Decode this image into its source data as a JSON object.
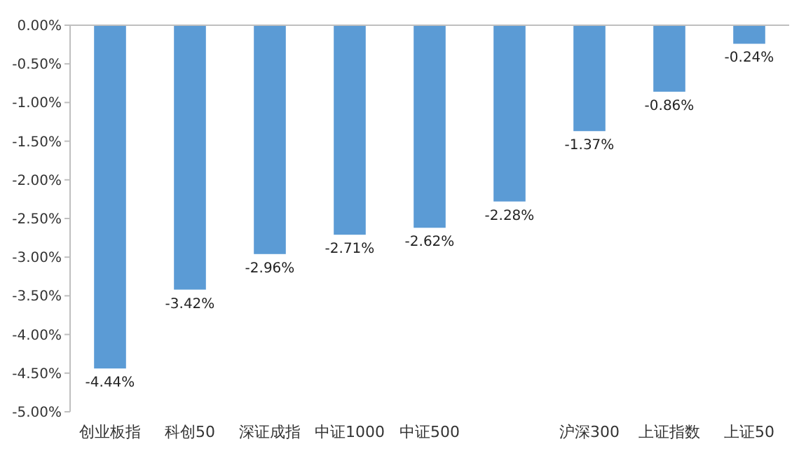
{
  "chart_data": {
    "type": "bar",
    "categories": [
      "创业板指",
      "科创50",
      "深证成指",
      "中证1000",
      "中证500",
      null,
      "沪深300",
      "上证指数",
      "上证50"
    ],
    "values": [
      -4.44,
      -3.42,
      -2.96,
      -2.71,
      -2.62,
      -2.28,
      -1.37,
      -0.86,
      -0.24
    ],
    "value_labels": [
      "-4.44%",
      "-3.42%",
      "-2.96%",
      "-2.71%",
      "-2.62%",
      "-2.28%",
      "-1.37%",
      "-0.86%",
      "-0.24%"
    ],
    "color": "#5b9bd5",
    "ylim": [
      -5,
      0
    ],
    "yticks": [
      {
        "value": 0,
        "label": "0.00%"
      },
      {
        "value": -0.5,
        "label": "-0.50%"
      },
      {
        "value": -1,
        "label": "-1.00%"
      },
      {
        "value": -1.5,
        "label": "-1.50%"
      },
      {
        "value": -2,
        "label": "-2.00%"
      },
      {
        "value": -2.5,
        "label": "-2.50%"
      },
      {
        "value": -3,
        "label": "-3.00%"
      },
      {
        "value": -3.5,
        "label": "-3.50%"
      },
      {
        "value": -4,
        "label": "-4.00%"
      },
      {
        "value": -4.5,
        "label": "-4.50%"
      },
      {
        "value": -5,
        "label": "-5.00%"
      }
    ],
    "grid": false
  }
}
